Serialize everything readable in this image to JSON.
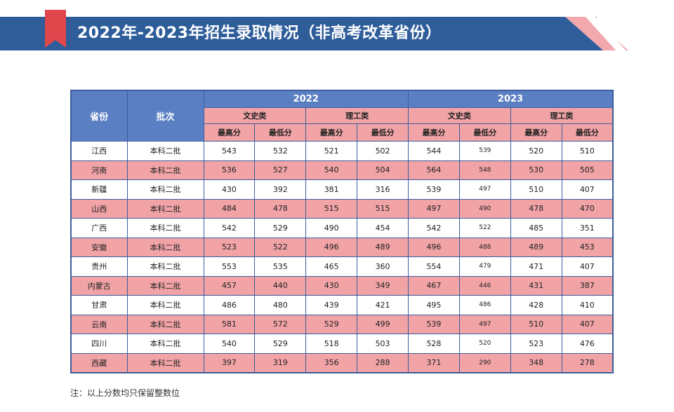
{
  "header": {
    "title": "2022年-2023年招生录取情况（非高考改革省份）"
  },
  "table": {
    "col_province": "省份",
    "col_batch": "批次",
    "years": [
      "2022",
      "2023"
    ],
    "categories": [
      "文史类",
      "理工类",
      "文史类",
      "理工类"
    ],
    "sub_headers": [
      "最高分",
      "最低分",
      "最高分",
      "最低分",
      "最高分",
      "最低分",
      "最高分",
      "最低分"
    ],
    "rows": [
      {
        "province": "江西",
        "batch": "本科二批",
        "v": [
          "543",
          "532",
          "521",
          "502",
          "544",
          "539",
          "520",
          "510"
        ]
      },
      {
        "province": "河南",
        "batch": "本科二批",
        "v": [
          "536",
          "527",
          "540",
          "504",
          "564",
          "548",
          "530",
          "505"
        ]
      },
      {
        "province": "新疆",
        "batch": "本科二批",
        "v": [
          "430",
          "392",
          "381",
          "316",
          "539",
          "497",
          "510",
          "407"
        ]
      },
      {
        "province": "山西",
        "batch": "本科二批",
        "v": [
          "484",
          "478",
          "515",
          "515",
          "497",
          "490",
          "478",
          "470"
        ]
      },
      {
        "province": "广西",
        "batch": "本科二批",
        "v": [
          "542",
          "529",
          "490",
          "454",
          "542",
          "522",
          "485",
          "351"
        ]
      },
      {
        "province": "安徽",
        "batch": "本科二批",
        "v": [
          "523",
          "522",
          "496",
          "489",
          "496",
          "488",
          "489",
          "453"
        ]
      },
      {
        "province": "贵州",
        "batch": "本科二批",
        "v": [
          "553",
          "535",
          "465",
          "360",
          "554",
          "479",
          "471",
          "407"
        ]
      },
      {
        "province": "内蒙古",
        "batch": "本科二批",
        "v": [
          "457",
          "440",
          "430",
          "349",
          "467",
          "446",
          "431",
          "387"
        ]
      },
      {
        "province": "甘肃",
        "batch": "本科二批",
        "v": [
          "486",
          "480",
          "439",
          "421",
          "495",
          "486",
          "428",
          "410"
        ]
      },
      {
        "province": "云南",
        "batch": "本科二批",
        "v": [
          "581",
          "572",
          "529",
          "499",
          "539",
          "497",
          "510",
          "407"
        ]
      },
      {
        "province": "四川",
        "batch": "本科二批",
        "v": [
          "540",
          "529",
          "518",
          "503",
          "528",
          "520",
          "523",
          "476"
        ]
      },
      {
        "province": "西藏",
        "batch": "本科二批",
        "v": [
          "397",
          "319",
          "356",
          "288",
          "371",
          "290",
          "348",
          "278"
        ]
      }
    ]
  },
  "note": "注：以上分数均只保留整数位"
}
